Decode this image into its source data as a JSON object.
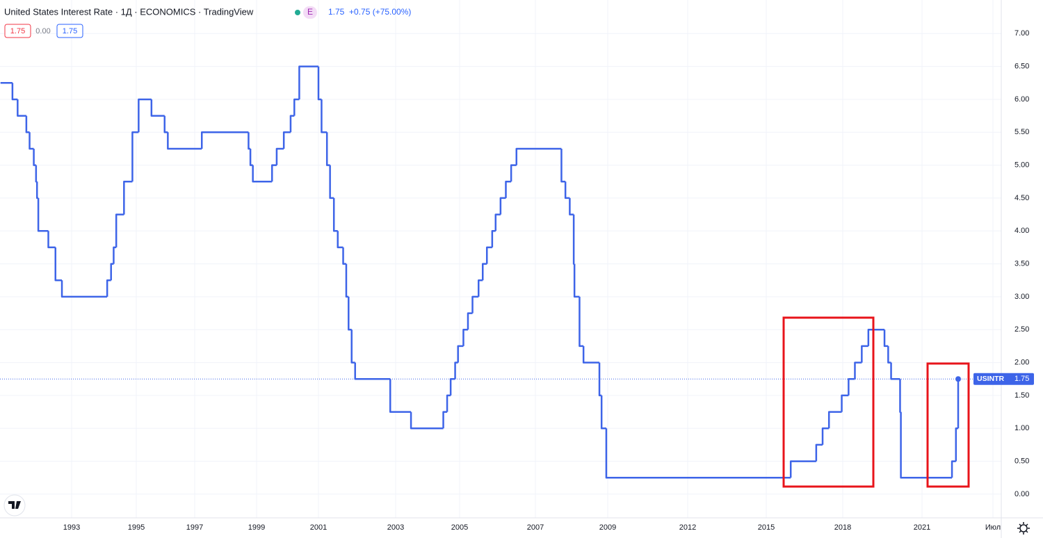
{
  "chart_data": {
    "type": "line",
    "title": "United States Interest Rate · 1Д · ECONOMICS · TradingView",
    "badge": "E",
    "legend": {
      "value": "1.75",
      "change": "+0.75 (+75.00%)"
    },
    "ohlc_boxes": [
      "1.75",
      "0.00",
      "1.75"
    ],
    "price_label": {
      "name": "USINTR",
      "value": "1.75"
    },
    "line_shape": "step",
    "grid": true,
    "xlim": [
      1990.78,
      2023.0
    ],
    "ylim": [
      -0.36,
      7.51
    ],
    "xticks": [
      1993,
      1995,
      1997,
      1999,
      2001,
      2003,
      2005,
      2007,
      2009,
      2012,
      2015,
      2018,
      2021,
      {
        "value": 2022.5,
        "label": "Июл"
      }
    ],
    "yticks": [
      {
        "value": 0,
        "label": "0.00"
      },
      {
        "value": 0.5,
        "label": "0.50"
      },
      {
        "value": 1,
        "label": "1.00"
      },
      {
        "value": 1.5,
        "label": "1.50"
      },
      {
        "value": 2,
        "label": "2.00"
      },
      {
        "value": 2.5,
        "label": "2.50"
      },
      {
        "value": 3,
        "label": "3.00"
      },
      {
        "value": 3.5,
        "label": "3.50"
      },
      {
        "value": 4,
        "label": "4.00"
      },
      {
        "value": 4.5,
        "label": "4.50"
      },
      {
        "value": 5,
        "label": "5.00"
      },
      {
        "value": 5.5,
        "label": "5.50"
      },
      {
        "value": 6,
        "label": "6.00"
      },
      {
        "value": 6.5,
        "label": "6.50"
      },
      {
        "value": 7,
        "label": "7.00"
      }
    ],
    "series": [
      {
        "name": "USINTR",
        "color": "#3d64e8",
        "x": [
          1990.8,
          1991.17,
          1991.33,
          1991.6,
          1991.7,
          1991.83,
          1991.9,
          1991.93,
          1991.97,
          1992.28,
          1992.5,
          1992.7,
          1994.1,
          1994.22,
          1994.3,
          1994.38,
          1994.62,
          1994.88,
          1995.08,
          1995.52,
          1995.97,
          1996.08,
          1997.23,
          1998.74,
          1998.8,
          1998.88,
          1999.5,
          1999.65,
          1999.88,
          2000.1,
          2000.22,
          2000.38,
          2001.0,
          2001.08,
          2001.22,
          2001.3,
          2001.4,
          2001.5,
          2001.64,
          2001.72,
          2001.78,
          2001.86,
          2001.95,
          2002.86,
          2003.48,
          2004.49,
          2004.61,
          2004.72,
          2004.86,
          2004.95,
          2005.1,
          2005.22,
          2005.34,
          2005.5,
          2005.61,
          2005.72,
          2005.86,
          2005.95,
          2006.08,
          2006.22,
          2006.36,
          2006.5,
          2007.72,
          2007.83,
          2007.95,
          2008.06,
          2008.08,
          2008.22,
          2008.33,
          2008.77,
          2008.83,
          2008.96,
          2015.96,
          2016.96,
          2017.21,
          2017.46,
          2017.96,
          2018.22,
          2018.46,
          2018.72,
          2018.97,
          2019.58,
          2019.72,
          2019.83,
          2020.17,
          2020.2,
          2022.21,
          2022.37,
          2022.46
        ],
        "values": [
          6.25,
          6.0,
          5.75,
          5.5,
          5.25,
          5.0,
          4.75,
          4.5,
          4.0,
          3.75,
          3.25,
          3.0,
          3.25,
          3.5,
          3.75,
          4.25,
          4.75,
          5.5,
          6.0,
          5.75,
          5.5,
          5.25,
          5.5,
          5.25,
          5.0,
          4.75,
          5.0,
          5.25,
          5.5,
          5.75,
          6.0,
          6.5,
          6.0,
          5.5,
          5.0,
          4.5,
          4.0,
          3.75,
          3.5,
          3.0,
          2.5,
          2.0,
          1.75,
          1.25,
          1.0,
          1.25,
          1.5,
          1.75,
          2.0,
          2.25,
          2.5,
          2.75,
          3.0,
          3.25,
          3.5,
          3.75,
          4.0,
          4.25,
          4.5,
          4.75,
          5.0,
          5.25,
          4.75,
          4.5,
          4.25,
          3.5,
          3.0,
          2.25,
          2.0,
          1.5,
          1.0,
          0.25,
          0.5,
          0.75,
          1.0,
          1.25,
          1.5,
          1.75,
          2.0,
          2.25,
          2.5,
          2.25,
          2.0,
          1.75,
          1.25,
          0.25,
          0.5,
          1.0,
          1.75
        ]
      }
    ]
  }
}
